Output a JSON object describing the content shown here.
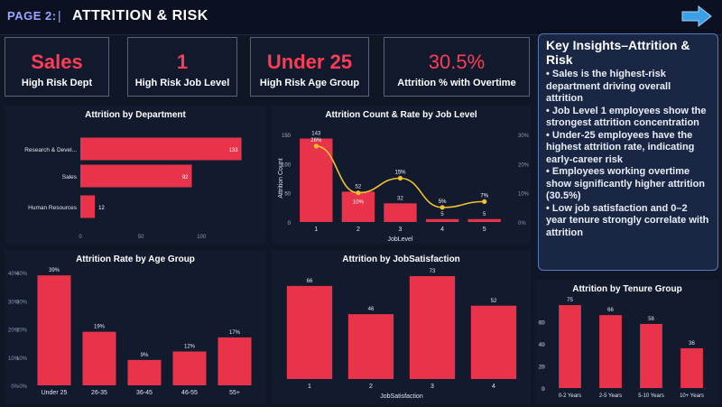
{
  "header": {
    "page_label": "PAGE 2:",
    "separator": "|",
    "title": "ATTRITION & RISK"
  },
  "colors": {
    "accent": "#e8334a",
    "line": "#f2c12e",
    "kpi_value": "#ff3b56",
    "arrow": "#3b9fe6"
  },
  "kpis": [
    {
      "value": "Sales",
      "label": "High Risk Dept"
    },
    {
      "value": "1",
      "label": "High Risk Job Level"
    },
    {
      "value": "Under 25",
      "label": "High Risk Age Group"
    },
    {
      "value": "30.5%",
      "label": "Attrition % with Overtime"
    }
  ],
  "insights": {
    "title": "Key Insights–Attrition & Risk",
    "items": [
      "• Sales is the highest-risk department driving overall attrition",
      "• Job Level 1 employees show the strongest attrition concentration",
      "• Under-25 employees have the highest attrition rate, indicating early-career risk",
      "• Employees working overtime show significantly higher attrition (30.5%)",
      "• Low job satisfaction and 0–2 year tenure strongly correlate with attrition"
    ]
  },
  "chart_data": [
    {
      "id": "dept",
      "type": "bar",
      "orientation": "horizontal",
      "title": "Attrition by Department",
      "categories": [
        "Research & Devel...",
        "Sales",
        "Human Resources"
      ],
      "values": [
        133,
        92,
        12
      ],
      "value_labels": [
        "133",
        "92",
        "12"
      ],
      "xticks": [
        "0",
        "50",
        "100"
      ],
      "xlim": [
        0,
        140
      ]
    },
    {
      "id": "joblevel",
      "type": "bar",
      "title": "Attrition Count & Rate by Job Level",
      "xlabel": "JobLevel",
      "ylabel": "Attrition Count",
      "categories": [
        "1",
        "2",
        "3",
        "4",
        "5"
      ],
      "values": [
        143,
        52,
        32,
        5,
        5
      ],
      "value_labels": [
        "143",
        "52",
        "32",
        "5",
        "5"
      ],
      "line_values": [
        26,
        10,
        15,
        5,
        7
      ],
      "line_labels": [
        "26%",
        "10%",
        "15%",
        "5%",
        "7%"
      ],
      "yticks": [
        "0",
        "50",
        "100",
        "150"
      ],
      "ylim": [
        0,
        150
      ],
      "y2ticks": [
        "0%",
        "10%",
        "20%",
        "30%"
      ],
      "y2lim": [
        0,
        30
      ]
    },
    {
      "id": "age",
      "type": "bar",
      "title": "Attrition Rate by Age Group",
      "categories": [
        "Under 25",
        "26-35",
        "36-45",
        "46-55",
        "55+"
      ],
      "values": [
        39,
        19,
        9,
        12,
        17
      ],
      "value_labels": [
        "39%",
        "19%",
        "9%",
        "12%",
        "17%"
      ],
      "yticks": [
        "0%",
        "10%",
        "20%",
        "30%",
        "40%"
      ],
      "ylim": [
        0,
        40
      ]
    },
    {
      "id": "jobsat",
      "type": "bar",
      "title": "Attrition by JobSatisfaction",
      "xlabel": "JobSatisfaction",
      "categories": [
        "1",
        "2",
        "3",
        "4"
      ],
      "values": [
        66,
        46,
        73,
        52
      ],
      "value_labels": [
        "66",
        "46",
        "73",
        "52"
      ],
      "ylim": [
        0,
        80
      ]
    },
    {
      "id": "tenure",
      "type": "bar",
      "title": "Attrition by Tenure Group",
      "categories": [
        "0-2 Years",
        "2-5 Years",
        "5-10 Years",
        "10+ Years"
      ],
      "values": [
        75,
        66,
        58,
        36
      ],
      "value_labels": [
        "75",
        "66",
        "58",
        "36"
      ],
      "yticks": [
        "0",
        "20",
        "40",
        "60"
      ],
      "ylim": [
        0,
        80
      ]
    }
  ]
}
